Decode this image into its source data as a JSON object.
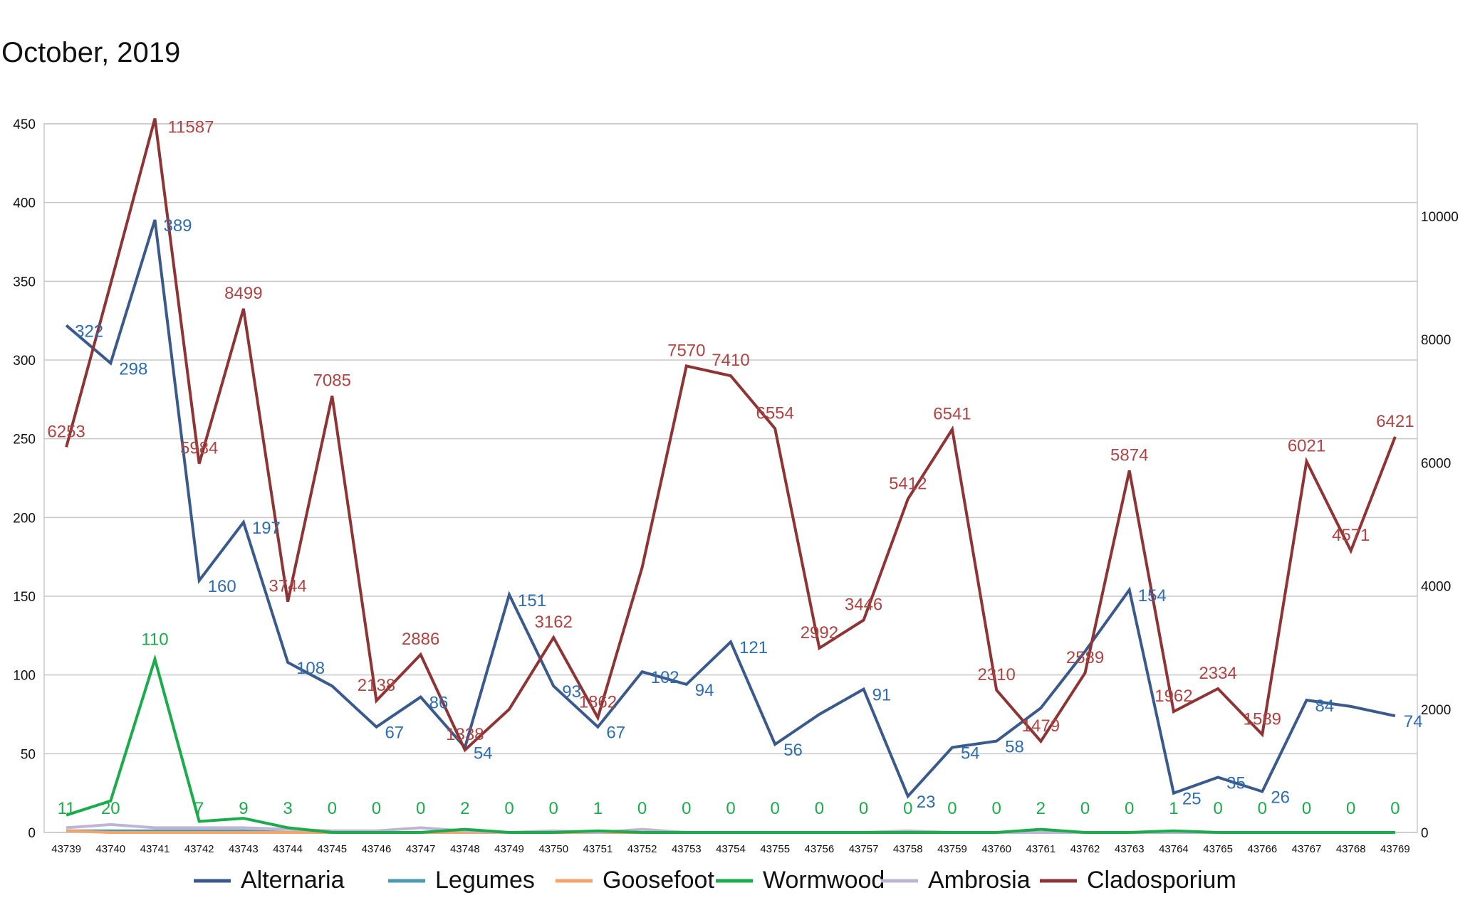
{
  "chart_data": {
    "type": "line",
    "title": "October, 2019",
    "x": [
      43739,
      43740,
      43741,
      43742,
      43743,
      43744,
      43745,
      43746,
      43747,
      43748,
      43749,
      43750,
      43751,
      43752,
      43753,
      43754,
      43755,
      43756,
      43757,
      43758,
      43759,
      43760,
      43761,
      43762,
      43763,
      43764,
      43765,
      43766,
      43767,
      43768,
      43769
    ],
    "y_left": {
      "min": 0,
      "max": 450,
      "ticks": [
        0,
        50,
        100,
        150,
        200,
        250,
        300,
        350,
        400,
        450
      ]
    },
    "y_right": {
      "min": 0,
      "max": 11500,
      "ticks": [
        0,
        2000,
        4000,
        6000,
        8000,
        10000
      ]
    },
    "grid": true,
    "legend_position": "bottom",
    "series": [
      {
        "name": "Alternaria",
        "axis": "left",
        "color": "#3a5a8c",
        "label_color": "#2e6db0",
        "values": [
          322,
          298,
          389,
          160,
          197,
          108,
          93,
          67,
          86,
          54,
          151,
          93,
          67,
          102,
          94,
          121,
          56,
          75,
          91,
          23,
          54,
          58,
          79,
          115,
          154,
          25,
          35,
          26,
          84,
          80,
          74
        ],
        "labels": {
          "0": "322",
          "1": "298",
          "2": "389",
          "3": "160",
          "4": "197",
          "5": "108",
          "7": "67",
          "8": "86",
          "9": "54",
          "10": "151",
          "11": "93",
          "12": "67",
          "13": "102",
          "14": "94",
          "15": "121",
          "16": "56",
          "18": "91",
          "19": "23",
          "20": "54",
          "21": "58",
          "24": "154",
          "25": "25",
          "26": "35",
          "27": "26",
          "28": "84",
          "30": "74"
        }
      },
      {
        "name": "Legumes",
        "axis": "left",
        "color": "#4a9ab0",
        "label_color": "#4a9ab0",
        "values": [
          1,
          1,
          1,
          1,
          1,
          0,
          0,
          0,
          0,
          0,
          0,
          0,
          0,
          0,
          0,
          0,
          0,
          0,
          0,
          0,
          0,
          0,
          0,
          0,
          0,
          0,
          0,
          0,
          0,
          0,
          0
        ],
        "labels": {}
      },
      {
        "name": "Goosefoot",
        "axis": "left",
        "color": "#f4a36a",
        "label_color": "#f4a36a",
        "values": [
          1,
          0,
          0,
          0,
          0,
          0,
          0,
          0,
          0,
          0,
          0,
          0,
          0,
          0,
          0,
          0,
          0,
          0,
          0,
          0,
          0,
          0,
          0,
          0,
          0,
          0,
          0,
          0,
          0,
          0,
          0
        ],
        "labels": {}
      },
      {
        "name": "Wormwood",
        "axis": "left",
        "color": "#1aab4a",
        "label_color": "#1aab4a",
        "values": [
          11,
          20,
          110,
          7,
          9,
          3,
          0,
          0,
          0,
          2,
          0,
          0,
          1,
          0,
          0,
          0,
          0,
          0,
          0,
          0,
          0,
          0,
          2,
          0,
          0,
          1,
          0,
          0,
          0,
          0,
          0
        ],
        "labels": {
          "0": "11",
          "1": "20",
          "2": "110",
          "3": "7",
          "4": "9",
          "5": "3",
          "6": "0",
          "7": "0",
          "8": "0",
          "9": "2",
          "10": "0",
          "11": "0",
          "12": "1",
          "13": "0",
          "14": "0",
          "15": "0",
          "16": "0",
          "17": "0",
          "18": "0",
          "19": "0",
          "20": "0",
          "21": "0",
          "22": "2",
          "23": "0",
          "24": "0",
          "25": "1",
          "26": "0",
          "27": "0",
          "28": "0",
          "29": "0",
          "30": "0"
        }
      },
      {
        "name": "Ambrosia",
        "axis": "left",
        "color": "#c0b4d4",
        "label_color": "#c0b4d4",
        "values": [
          3,
          5,
          3,
          3,
          3,
          2,
          1,
          1,
          3,
          1,
          0,
          1,
          0,
          2,
          0,
          0,
          0,
          0,
          0,
          1,
          0,
          0,
          0,
          0,
          0,
          0,
          0,
          0,
          0,
          0,
          0
        ],
        "labels": {}
      },
      {
        "name": "Cladosporium",
        "axis": "right",
        "color": "#8e3434",
        "label_color": "#b04444",
        "values": [
          6253,
          8900,
          11587,
          5984,
          8499,
          3744,
          7085,
          2138,
          2886,
          1338,
          2000,
          3162,
          1862,
          4300,
          7570,
          7410,
          6554,
          2992,
          3446,
          5412,
          6541,
          2310,
          1479,
          2589,
          5874,
          1962,
          2334,
          1589,
          6021,
          4571,
          6421
        ],
        "labels": {
          "0": "6253",
          "2": "11587",
          "3": "5984",
          "4": "8499",
          "5": "3744",
          "6": "7085",
          "7": "2138",
          "8": "2886",
          "9": "1338",
          "11": "3162",
          "12": "1862",
          "14": "7570",
          "15": "7410",
          "16": "6554",
          "17": "2992",
          "18": "3446",
          "19": "5412",
          "20": "6541",
          "21": "2310",
          "22": "1479",
          "23": "2589",
          "24": "5874",
          "25": "1962",
          "26": "2334",
          "27": "1589",
          "28": "6021",
          "29": "4571",
          "30": "6421"
        }
      }
    ]
  }
}
